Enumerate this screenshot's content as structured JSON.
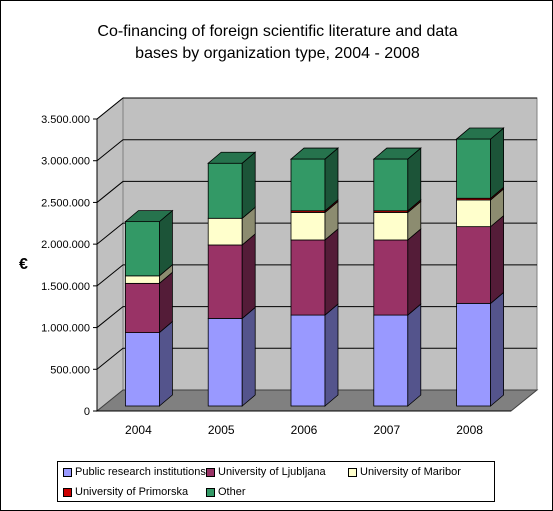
{
  "title_lines": [
    "Co-financing of foreign scientific literature and data",
    "bases by organization type, 2004 - 2008"
  ],
  "colors": {
    "wall": "#c0c0c0",
    "floor": "#808080",
    "gridline": "#000000",
    "series": [
      "#9999ff",
      "#993366",
      "#ffffcc",
      "#cc0000",
      "#339966"
    ]
  },
  "chart_data": {
    "type": "bar",
    "stacked": true,
    "three_d": true,
    "title": "Co-financing of foreign scientific literature and data bases by organization type, 2004 - 2008",
    "ylabel": "€",
    "xlabel": "",
    "ylim": [
      0,
      3500000
    ],
    "yticks": [
      0,
      500000,
      1000000,
      1500000,
      2000000,
      2500000,
      3000000,
      3500000
    ],
    "ytick_labels": [
      "0",
      "500.000",
      "1.000.000",
      "1.500.000",
      "2.000.000",
      "2.500.000",
      "3.000.000",
      "3.500.000"
    ],
    "categories": [
      "2004",
      "2005",
      "2006",
      "2007",
      "2008"
    ],
    "grid": true,
    "legend_position": "bottom",
    "series": [
      {
        "name": "Public research institutions",
        "values": [
          880000,
          1050000,
          1090000,
          1090000,
          1230000
        ]
      },
      {
        "name": "University of Ljubljana",
        "values": [
          590000,
          880000,
          900000,
          900000,
          920000
        ]
      },
      {
        "name": "University of Maribor",
        "values": [
          90000,
          320000,
          330000,
          330000,
          320000
        ]
      },
      {
        "name": "University of Primorska",
        "values": [
          0,
          0,
          20000,
          20000,
          20000
        ]
      },
      {
        "name": "Other",
        "values": [
          650000,
          660000,
          620000,
          620000,
          710000
        ]
      }
    ]
  }
}
